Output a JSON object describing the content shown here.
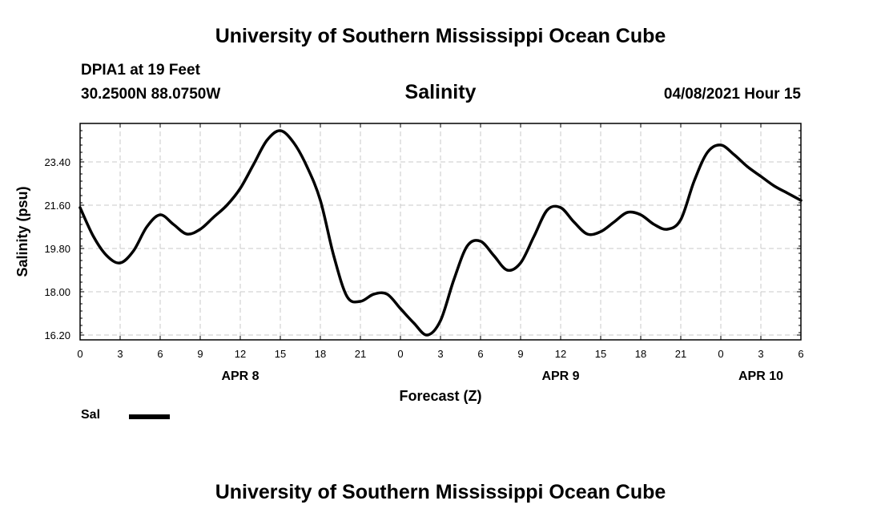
{
  "header": {
    "top_title": "University of Southern Mississippi Ocean Cube",
    "station": "DPIA1 at 19 Feet",
    "coords": "30.2500N  88.0750W",
    "chart_title": "Salinity",
    "timestamp": "04/08/2021 Hour 15"
  },
  "footer": {
    "bottom_title": "University of Southern Mississippi Ocean Cube"
  },
  "legend": {
    "label": "Sal",
    "color": "#000000"
  },
  "chart_data": {
    "type": "line",
    "title": "Salinity",
    "xlabel": "Forecast (Z)",
    "ylabel": "Salinity (psu)",
    "xlim": [
      0,
      54
    ],
    "ylim": [
      16.0,
      25.0
    ],
    "yticks": [
      "16.20",
      "18.00",
      "19.80",
      "21.60",
      "23.40"
    ],
    "ytick_values": [
      16.2,
      18.0,
      19.8,
      21.6,
      23.4
    ],
    "xticks": [
      "0",
      "3",
      "6",
      "9",
      "12",
      "15",
      "18",
      "21",
      "0",
      "3",
      "6",
      "9",
      "12",
      "15",
      "18",
      "21",
      "0",
      "3",
      "6"
    ],
    "date_labels": [
      {
        "label": "APR 8",
        "at": 12
      },
      {
        "label": "APR 9",
        "at": 36
      },
      {
        "label": "APR 10",
        "at": 51
      }
    ],
    "grid": true,
    "series": [
      {
        "name": "Sal",
        "color": "#000000",
        "x": [
          0,
          1,
          2,
          3,
          4,
          5,
          6,
          7,
          8,
          9,
          10,
          11,
          12,
          13,
          14,
          15,
          16,
          17,
          18,
          19,
          20,
          21,
          22,
          23,
          24,
          25,
          26,
          27,
          28,
          29,
          30,
          31,
          32,
          33,
          34,
          35,
          36,
          37,
          38,
          39,
          40,
          41,
          42,
          43,
          44,
          45,
          46,
          47,
          48,
          49,
          50,
          51,
          52,
          53,
          54
        ],
        "values": [
          21.5,
          20.3,
          19.5,
          19.2,
          19.7,
          20.7,
          21.2,
          20.8,
          20.4,
          20.6,
          21.1,
          21.6,
          22.3,
          23.3,
          24.3,
          24.7,
          24.2,
          23.2,
          21.8,
          19.5,
          17.8,
          17.6,
          17.9,
          17.9,
          17.3,
          16.7,
          16.2,
          16.8,
          18.5,
          19.9,
          20.1,
          19.5,
          18.9,
          19.2,
          20.3,
          21.4,
          21.5,
          20.9,
          20.4,
          20.5,
          20.9,
          21.3,
          21.2,
          20.8,
          20.6,
          21.0,
          22.6,
          23.8,
          24.1,
          23.7,
          23.2,
          22.8,
          22.4,
          22.1,
          21.8
        ]
      }
    ]
  }
}
